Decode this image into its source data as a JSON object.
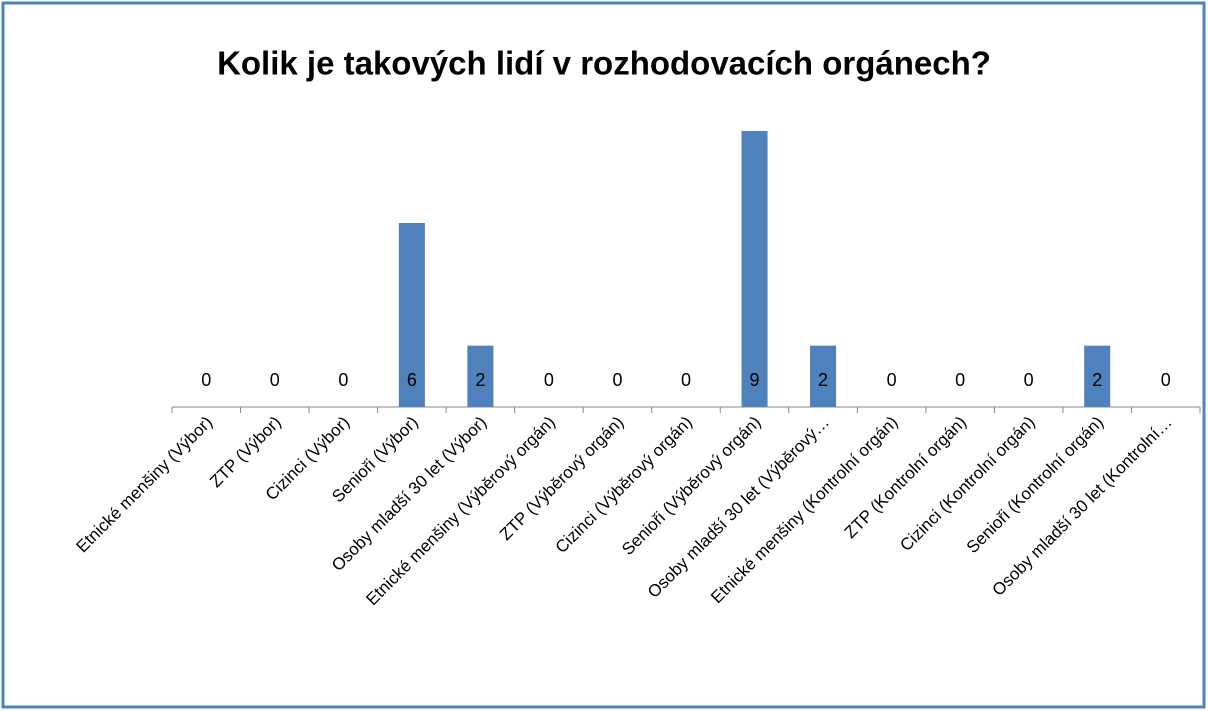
{
  "chart_data": {
    "type": "bar",
    "title": "Kolik je takových lidí v rozhodovacích orgánech?",
    "categories": [
      "Etnické menšiny (Výbor)",
      "ZTP (Výbor)",
      "Cizinci (Výbor)",
      "Senioři (Výbor)",
      "Osoby mladší 30 let (Výbor)",
      "Etnické menšiny (Výběrový orgán)",
      "ZTP (Výběrový orgán)",
      "Cizinci (Výběrový orgán)",
      "Senioři (Výběrový orgán)",
      "Osoby mladší 30 let (Výběrový…",
      "Etnické menšiny (Kontrolní orgán)",
      "ZTP (Kontrolní orgán)",
      "Cizinci (Kontrolní orgán)",
      "Senioři (Kontrolní orgán)",
      "Osoby mladší 30 let (Kontrolní…"
    ],
    "values": [
      0,
      0,
      0,
      6,
      2,
      0,
      0,
      0,
      9,
      2,
      0,
      0,
      0,
      2,
      0
    ],
    "color": "#4f81bd"
  }
}
